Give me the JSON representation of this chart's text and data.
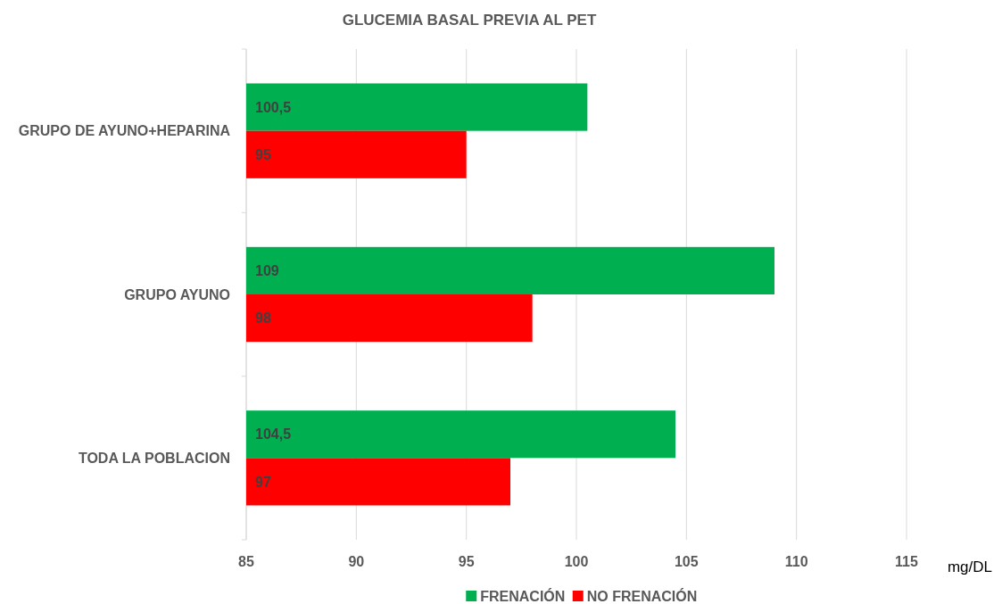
{
  "chart_data": {
    "type": "bar",
    "orientation": "horizontal",
    "title": "GLUCEMIA BASAL PREVIA AL PET",
    "xlabel": "mg/DL",
    "categories": [
      "GRUPO DE AYUNO+HEPARINA",
      "GRUPO AYUNO",
      "TODA LA POBLACION"
    ],
    "series": [
      {
        "name": "FRENACIÓN",
        "color": "#00b050",
        "values": [
          100.5,
          109,
          104.5
        ],
        "value_labels": [
          "100,5",
          "109",
          "104,5"
        ]
      },
      {
        "name": "NO FRENACIÓN",
        "color": "#ff0000",
        "values": [
          95,
          98,
          97
        ],
        "value_labels": [
          "95",
          "98",
          "97"
        ]
      }
    ],
    "xlim": [
      85,
      115
    ],
    "xticks": [
      85,
      90,
      95,
      100,
      105,
      110,
      115
    ],
    "grid": "x",
    "legend": "bottom"
  }
}
